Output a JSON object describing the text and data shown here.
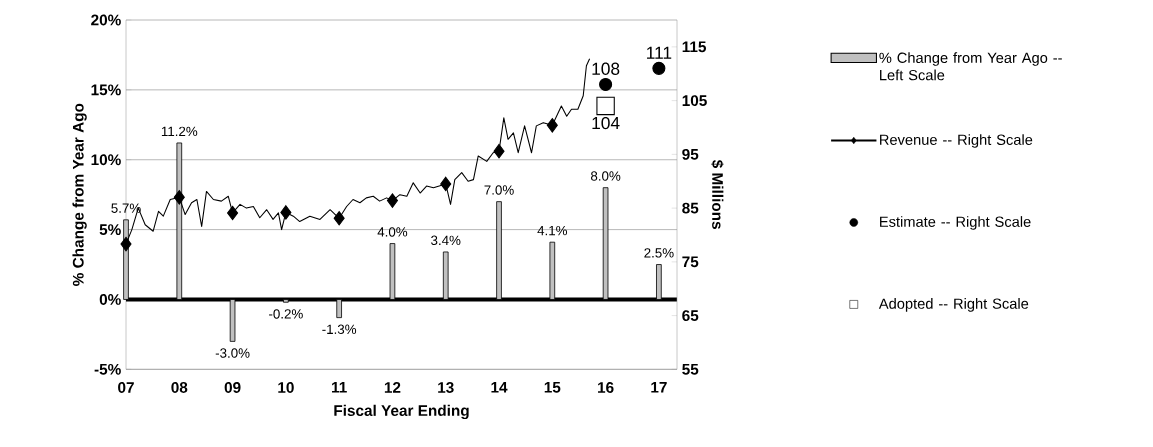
{
  "chart_data": {
    "type": "bar",
    "xlabel": "Fiscal Year Ending",
    "ylabel": "% Change from Year Ago",
    "y2label": "$ Millions",
    "xlim": [
      2007,
      2017.34
    ],
    "xticks": [
      {
        "value": 2007,
        "label": "07"
      },
      {
        "value": 2008,
        "label": "08"
      },
      {
        "value": 2009,
        "label": "09"
      },
      {
        "value": 2010,
        "label": "10"
      },
      {
        "value": 2011,
        "label": "11"
      },
      {
        "value": 2012,
        "label": "12"
      },
      {
        "value": 2013,
        "label": "13"
      },
      {
        "value": 2014,
        "label": "14"
      },
      {
        "value": 2015,
        "label": "15"
      },
      {
        "value": 2016,
        "label": "16"
      },
      {
        "value": 2017,
        "label": "17"
      }
    ],
    "ylim": [
      -5,
      20
    ],
    "yticks": [
      {
        "value": -5,
        "label": "-5%"
      },
      {
        "value": 0,
        "label": "0%"
      },
      {
        "value": 5,
        "label": "5%"
      },
      {
        "value": 10,
        "label": "10%"
      },
      {
        "value": 15,
        "label": "15%"
      },
      {
        "value": 20,
        "label": "20%"
      }
    ],
    "y2lim": [
      55,
      120
    ],
    "y2ticks": [
      55,
      65,
      75,
      85,
      95,
      105,
      115
    ],
    "grid": "y",
    "legend": "right",
    "series": [
      {
        "name": "% Change from Year Ago -- Left Scale",
        "color": "#c0c0c0",
        "x": [
          2007,
          2008,
          2009,
          2010,
          2011,
          2012,
          2013,
          2014,
          2015,
          2016,
          2017
        ],
        "values": [
          5.7,
          11.2,
          -3.0,
          -0.2,
          -1.3,
          4.0,
          3.4,
          7.0,
          4.1,
          8.0,
          2.5
        ],
        "value_labels": [
          "5.7%",
          "11.2%",
          "-3.0%",
          "-0.2%",
          "-1.3%",
          "4.0%",
          "3.4%",
          "7.0%",
          "4.1%",
          "8.0%",
          "2.5%"
        ]
      },
      {
        "type": "line",
        "name": "Revenue -- Right Scale",
        "color": "#000000",
        "axis": "y2",
        "x": [
          2007.0,
          2007.11,
          2007.23,
          2007.36,
          2007.51,
          2007.61,
          2007.7,
          2007.83,
          2008.0,
          2008.11,
          2008.23,
          2008.33,
          2008.42,
          2008.51,
          2008.64,
          2008.79,
          2008.92,
          2009.0,
          2009.14,
          2009.26,
          2009.39,
          2009.51,
          2009.64,
          2009.76,
          2009.86,
          2009.92,
          2010.0,
          2010.14,
          2010.26,
          2010.45,
          2010.64,
          2010.83,
          2011.0,
          2011.14,
          2011.26,
          2011.39,
          2011.51,
          2011.64,
          2011.76,
          2011.89,
          2012.0,
          2012.14,
          2012.27,
          2012.39,
          2012.52,
          2012.64,
          2012.77,
          2013.0,
          2013.09,
          2013.17,
          2013.3,
          2013.42,
          2013.52,
          2013.61,
          2013.77,
          2013.89,
          2014.0,
          2014.09,
          2014.17,
          2014.27,
          2014.36,
          2014.48,
          2014.61,
          2014.7,
          2014.83,
          2015.0,
          2015.17,
          2015.27,
          2015.36,
          2015.48,
          2015.58,
          2015.64,
          2015.7
        ],
        "values": [
          78.3,
          81.0,
          85.0,
          81.9,
          80.7,
          84.4,
          83.5,
          86.6,
          87.0,
          83.8,
          86.0,
          86.6,
          81.6,
          88.1,
          86.6,
          86.3,
          87.2,
          84.1,
          85.7,
          85.0,
          85.3,
          83.2,
          84.7,
          82.9,
          84.1,
          81.0,
          84.2,
          83.5,
          82.5,
          83.5,
          82.9,
          84.7,
          83.1,
          85.3,
          86.6,
          86.0,
          86.9,
          87.2,
          86.3,
          86.9,
          86.4,
          87.5,
          87.2,
          89.7,
          87.8,
          89.1,
          88.8,
          89.5,
          85.7,
          90.3,
          91.6,
          90.0,
          90.3,
          94.7,
          93.7,
          95.3,
          95.6,
          101.8,
          97.8,
          99.0,
          95.3,
          100.3,
          95.3,
          100.3,
          100.9,
          100.4,
          104.0,
          102.1,
          103.4,
          103.4,
          105.9,
          111.5,
          112.8
        ]
      },
      {
        "type": "scatter",
        "color": "#000000",
        "axis": "y2",
        "marker": "diamond",
        "x": [
          2007,
          2008,
          2009,
          2010,
          2011,
          2012,
          2013,
          2014,
          2015
        ],
        "values": [
          78.3,
          87.0,
          84.1,
          84.2,
          83.1,
          86.4,
          89.5,
          95.6,
          100.4
        ]
      },
      {
        "type": "scatter",
        "name": "Estimate -- Right Scale",
        "color": "#000000",
        "axis": "y2",
        "marker": "circle",
        "x": [
          2016,
          2017
        ],
        "values": [
          108,
          111
        ],
        "value_labels": [
          "108",
          "111"
        ]
      },
      {
        "type": "scatter",
        "name": "Adopted -- Right Scale",
        "color": "#ffffff",
        "axis": "y2",
        "marker": "square",
        "x": [
          2016
        ],
        "values": [
          104
        ],
        "value_labels": [
          "104"
        ]
      }
    ]
  }
}
